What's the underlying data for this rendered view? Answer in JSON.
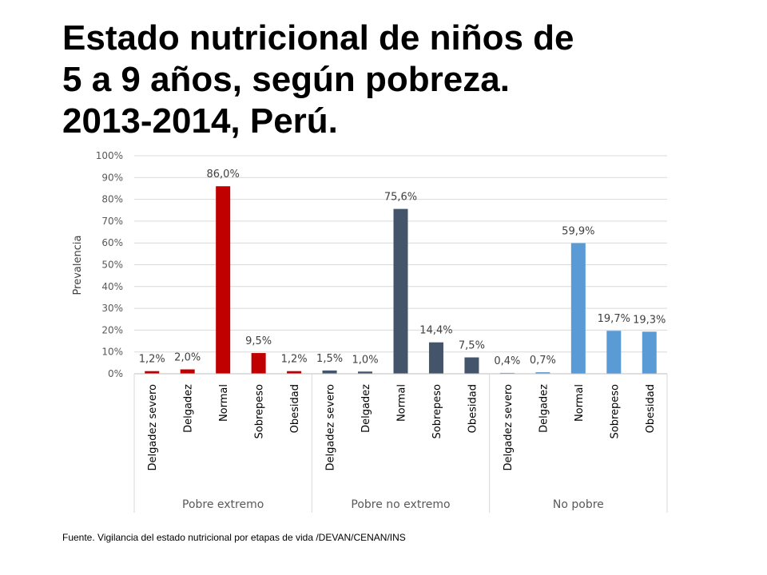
{
  "title_lines": [
    "Estado nutricional de niños de",
    "5 a 9 años, según pobreza.",
    "2013-2014, Perú."
  ],
  "source": "Fuente. Vigilancia del estado nutricional por etapas de vida /DEVAN/CENAN/INS",
  "chart_data": {
    "type": "bar",
    "title": "",
    "xlabel": "",
    "ylabel": "Prevalencia",
    "ylim": [
      0,
      100
    ],
    "y_ticks": [
      "0%",
      "10%",
      "20%",
      "30%",
      "40%",
      "50%",
      "60%",
      "70%",
      "80%",
      "90%",
      "100%"
    ],
    "grid": true,
    "legend": "none",
    "categories": [
      "Delgadez severo",
      "Delgadez",
      "Normal",
      "Sobrepeso",
      "Obesidad"
    ],
    "series": [
      {
        "group": "Pobre extremo",
        "color": "#C00000",
        "values": [
          1.2,
          2.0,
          86.0,
          9.5,
          1.2
        ],
        "labels": [
          "1,2%",
          "2,0%",
          "86,0%",
          "9,5%",
          "1,2%"
        ]
      },
      {
        "group": "Pobre no extremo",
        "color": "#44546A",
        "values": [
          1.5,
          1.0,
          75.6,
          14.4,
          7.5
        ],
        "labels": [
          "1,5%",
          "1,0%",
          "75,6%",
          "14,4%",
          "7,5%"
        ]
      },
      {
        "group": "No pobre",
        "color": "#5B9BD5",
        "values": [
          0.4,
          0.7,
          59.9,
          19.7,
          19.3
        ],
        "labels": [
          "0,4%",
          "0,7%",
          "59,9%",
          "19,7%",
          "19,3%"
        ]
      }
    ]
  }
}
